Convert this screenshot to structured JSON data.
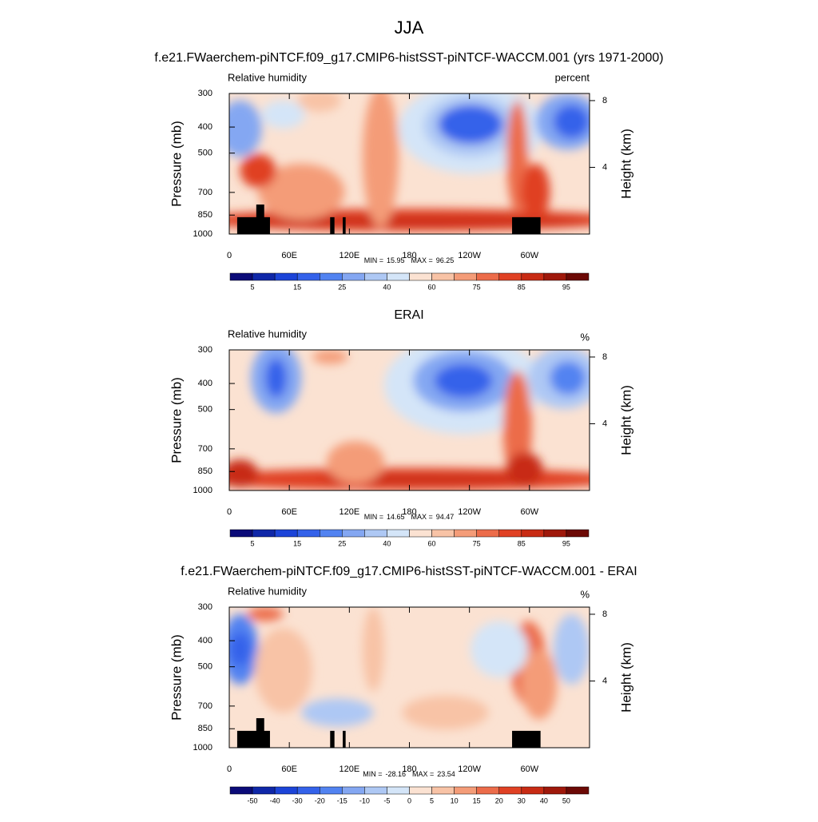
{
  "title": "JJA",
  "chart_data": [
    {
      "type": "contour",
      "title": "f.e21.FWaerchem-piNTCF.f09_g17.CMIP6-histSST-piNTCF-WACCM.001 (yrs 1971-2000)",
      "left_label": "Relative humidity",
      "units_label": "percent",
      "xlim": [
        0,
        360
      ],
      "xticks": [
        0,
        {
          "value": 60,
          "label": "60E"
        },
        {
          "value": 120,
          "label": "120E"
        },
        180,
        {
          "value": 240,
          "label": "120W"
        },
        {
          "value": 300,
          "label": "60W"
        }
      ],
      "ylabel": "Pressure (mb)",
      "ylim": [
        1000,
        300
      ],
      "log_scale": true,
      "yticks": [
        300,
        400,
        500,
        700,
        850,
        1000
      ],
      "y2label": "Height (km)",
      "y2ticks": [
        4,
        8
      ],
      "min_label": "MIN =",
      "min": 15.95,
      "max_label": "MAX =",
      "max": 96.25,
      "colorbar": {
        "colors": [
          "#0b0b78",
          "#0f27a8",
          "#1c44d8",
          "#3462ea",
          "#5283f1",
          "#84a7f2",
          "#aec8f4",
          "#d4e5f8",
          "#fbe2d2",
          "#f8c3a6",
          "#f49c78",
          "#ec6c4a",
          "#e04124",
          "#c82b14",
          "#9f180b",
          "#6c0905"
        ],
        "labels": [
          5,
          15,
          25,
          40,
          60,
          75,
          85,
          95
        ]
      }
    },
    {
      "type": "contour",
      "title": "ERAI",
      "left_label": "Relative humidity",
      "units_label": "%",
      "xlim": [
        0,
        360
      ],
      "xticks": [
        0,
        {
          "value": 60,
          "label": "60E"
        },
        {
          "value": 120,
          "label": "120E"
        },
        180,
        {
          "value": 240,
          "label": "120W"
        },
        {
          "value": 300,
          "label": "60W"
        }
      ],
      "ylabel": "Pressure (mb)",
      "ylim": [
        1000,
        300
      ],
      "log_scale": true,
      "yticks": [
        300,
        400,
        500,
        700,
        850,
        1000
      ],
      "y2label": "Height (km)",
      "y2ticks": [
        4,
        8
      ],
      "min_label": "MIN =",
      "min": 14.65,
      "max_label": "MAX =",
      "max": 94.47,
      "colorbar": {
        "colors": [
          "#0b0b78",
          "#0f27a8",
          "#1c44d8",
          "#3462ea",
          "#5283f1",
          "#84a7f2",
          "#aec8f4",
          "#d4e5f8",
          "#fbe2d2",
          "#f8c3a6",
          "#f49c78",
          "#ec6c4a",
          "#e04124",
          "#c82b14",
          "#9f180b",
          "#6c0905"
        ],
        "labels": [
          5,
          15,
          25,
          40,
          60,
          75,
          85,
          95
        ]
      }
    },
    {
      "type": "contour",
      "title": "f.e21.FWaerchem-piNTCF.f09_g17.CMIP6-histSST-piNTCF-WACCM.001 - ERAI",
      "left_label": "Relative humidity",
      "units_label": "%",
      "xlim": [
        0,
        360
      ],
      "xticks": [
        0,
        {
          "value": 60,
          "label": "60E"
        },
        {
          "value": 120,
          "label": "120E"
        },
        180,
        {
          "value": 240,
          "label": "120W"
        },
        {
          "value": 300,
          "label": "60W"
        }
      ],
      "ylabel": "Pressure (mb)",
      "ylim": [
        1000,
        300
      ],
      "log_scale": true,
      "yticks": [
        300,
        400,
        500,
        700,
        850,
        1000
      ],
      "y2label": "Height (km)",
      "y2ticks": [
        4,
        8
      ],
      "min_label": "MIN =",
      "min": -28.16,
      "max_label": "MAX =",
      "max": 23.54,
      "colorbar": {
        "colors": [
          "#0b0b78",
          "#0f27a8",
          "#1c44d8",
          "#3462ea",
          "#5283f1",
          "#84a7f2",
          "#aec8f4",
          "#d4e5f8",
          "#fbe2d2",
          "#f8c3a6",
          "#f49c78",
          "#ec6c4a",
          "#e04124",
          "#c82b14",
          "#9f180b",
          "#6c0905"
        ],
        "labels": [
          -50,
          -40,
          -30,
          -20,
          -15,
          -10,
          -5,
          0,
          5,
          10,
          15,
          20,
          30,
          40,
          50
        ]
      }
    }
  ]
}
